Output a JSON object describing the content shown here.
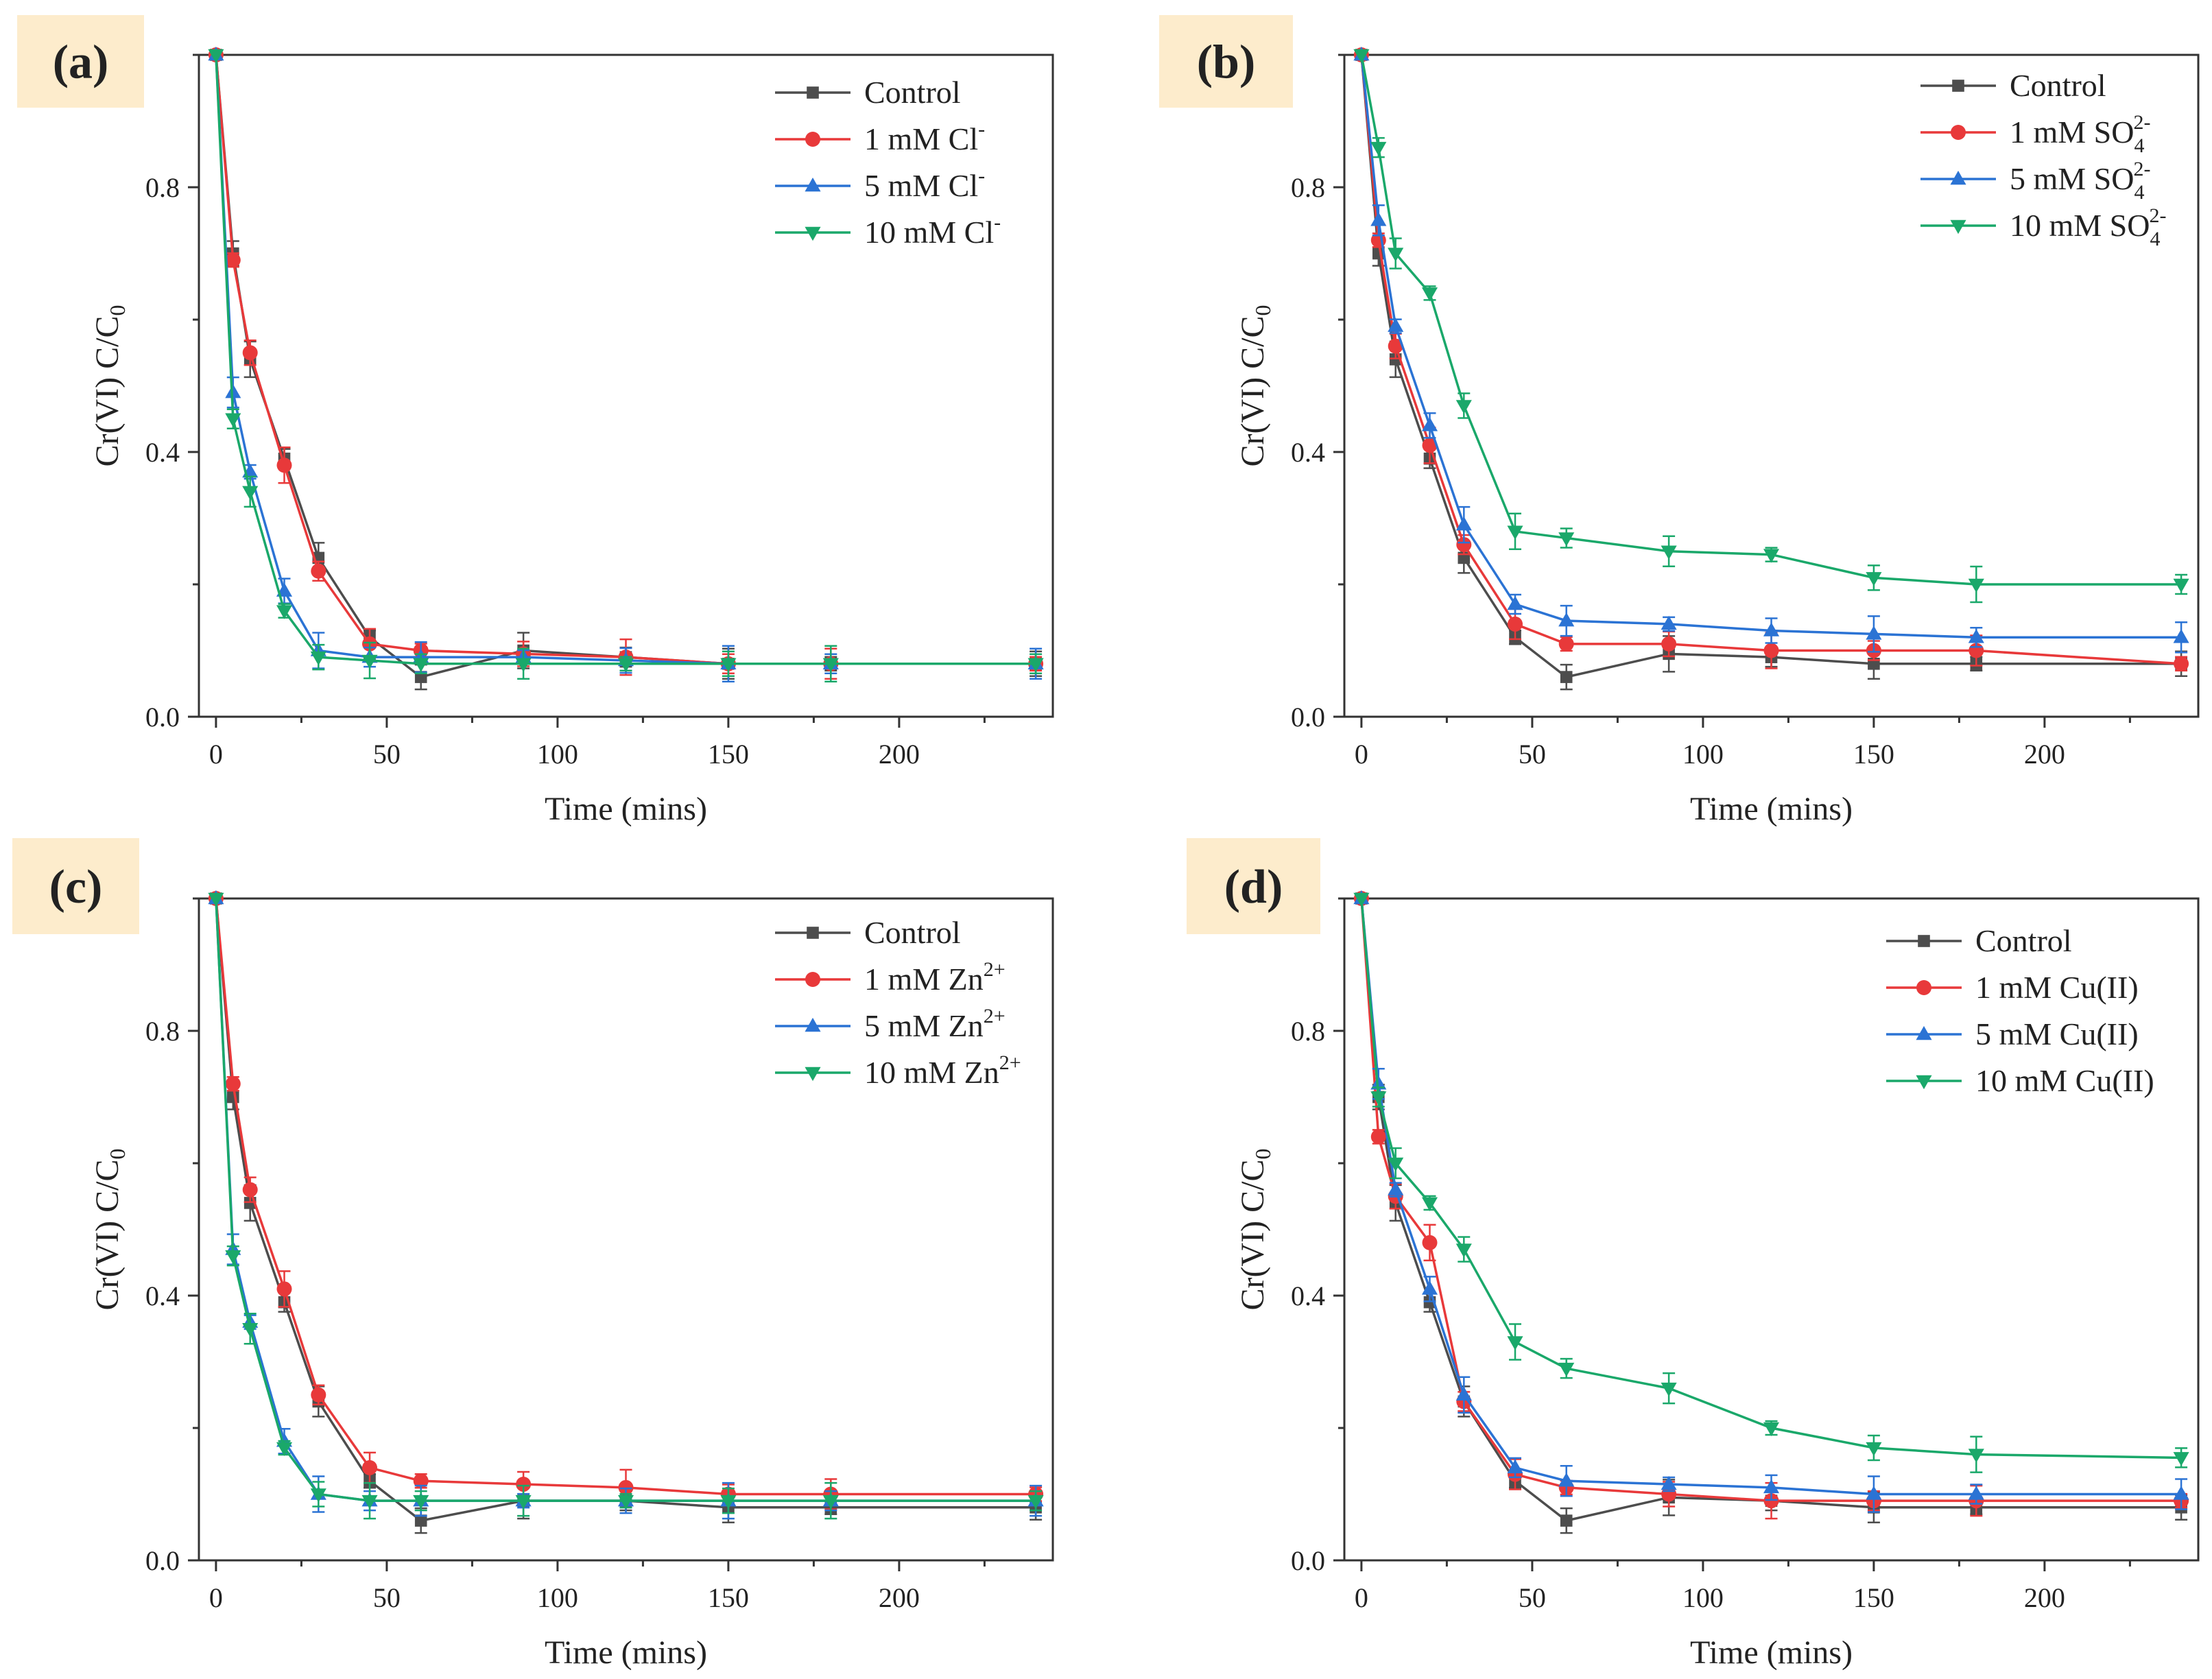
{
  "figure": {
    "panels": [
      "a",
      "b",
      "c",
      "d"
    ]
  },
  "chart_data": [
    {
      "type": "line",
      "panel_label": "(a)",
      "xlabel": "Time (mins)",
      "ylabel_main": "Cr(VI) C/C",
      "ylabel_sub": "0",
      "xlim": [
        -5,
        245
      ],
      "ylim": [
        0,
        1.0
      ],
      "xticks": [
        "0",
        "50",
        "100",
        "150",
        "200"
      ],
      "yticks": [
        "0.0",
        "0.4",
        "0.8"
      ],
      "legend_position": "top-right",
      "x": [
        0,
        5,
        10,
        20,
        30,
        45,
        60,
        90,
        120,
        150,
        180,
        240
      ],
      "series": [
        {
          "name": "Control",
          "ion_label": "Control",
          "ion_sup": "",
          "marker": "square",
          "color": "#4d4d4d",
          "values": [
            1.0,
            0.7,
            0.54,
            0.39,
            0.24,
            0.12,
            0.06,
            0.1,
            0.09,
            0.08,
            0.08,
            0.08
          ]
        },
        {
          "name": "1  mM Cl-",
          "ion_label": "1  mM Cl",
          "ion_sup": "-",
          "marker": "circle",
          "color": "#e8393a",
          "values": [
            1.0,
            0.69,
            0.55,
            0.38,
            0.22,
            0.11,
            0.1,
            0.095,
            0.09,
            0.08,
            0.08,
            0.08
          ]
        },
        {
          "name": "5  mM Cl-",
          "ion_label": "5  mM Cl",
          "ion_sup": "-",
          "marker": "triangle-up",
          "color": "#2b73d4",
          "values": [
            1.0,
            0.49,
            0.37,
            0.19,
            0.1,
            0.09,
            0.09,
            0.09,
            0.085,
            0.08,
            0.08,
            0.08
          ]
        },
        {
          "name": "10 mM Cl-",
          "ion_label": "10 mM Cl",
          "ion_sup": "-",
          "marker": "triangle-down",
          "color": "#1aa86a",
          "values": [
            1.0,
            0.45,
            0.34,
            0.16,
            0.09,
            0.085,
            0.08,
            0.08,
            0.08,
            0.08,
            0.08,
            0.08
          ]
        }
      ]
    },
    {
      "type": "line",
      "panel_label": "(b)",
      "xlabel": "Time (mins)",
      "ylabel_main": "Cr(VI) C/C",
      "ylabel_sub": "0",
      "xlim": [
        -5,
        245
      ],
      "ylim": [
        0,
        1.0
      ],
      "xticks": [
        "0",
        "50",
        "100",
        "150",
        "200"
      ],
      "yticks": [
        "0.0",
        "0.4",
        "0.8"
      ],
      "legend_position": "top-right",
      "x": [
        0,
        5,
        10,
        20,
        30,
        45,
        60,
        90,
        120,
        150,
        180,
        240
      ],
      "series": [
        {
          "name": "Control",
          "ion_label": "Control",
          "ion_sup": "",
          "ion_sub": "",
          "marker": "square",
          "color": "#4d4d4d",
          "values": [
            1.0,
            0.7,
            0.54,
            0.39,
            0.24,
            0.12,
            0.06,
            0.095,
            0.09,
            0.08,
            0.08,
            0.08
          ]
        },
        {
          "name": "1  mM SO4 2-",
          "ion_label": "1  mM SO",
          "ion_sup": "2-",
          "ion_sub": "4",
          "marker": "circle",
          "color": "#e8393a",
          "values": [
            1.0,
            0.72,
            0.56,
            0.41,
            0.26,
            0.14,
            0.11,
            0.11,
            0.1,
            0.1,
            0.1,
            0.08
          ]
        },
        {
          "name": "5  mM SO4 2-",
          "ion_label": "5  mM SO",
          "ion_sup": "2-",
          "ion_sub": "4",
          "marker": "triangle-up",
          "color": "#2b73d4",
          "values": [
            1.0,
            0.75,
            0.59,
            0.44,
            0.29,
            0.17,
            0.145,
            0.14,
            0.13,
            0.125,
            0.12,
            0.12
          ]
        },
        {
          "name": "10 mM SO4 2-",
          "ion_label": "10 mM SO",
          "ion_sup": "2-",
          "ion_sub": "4",
          "marker": "triangle-down",
          "color": "#1aa86a",
          "values": [
            1.0,
            0.86,
            0.7,
            0.64,
            0.47,
            0.28,
            0.27,
            0.25,
            0.245,
            0.21,
            0.2,
            0.2
          ]
        }
      ]
    },
    {
      "type": "line",
      "panel_label": "(c)",
      "xlabel": "Time (mins)",
      "ylabel_main": "Cr(VI) C/C",
      "ylabel_sub": "0",
      "xlim": [
        -5,
        245
      ],
      "ylim": [
        0,
        1.0
      ],
      "xticks": [
        "0",
        "50",
        "100",
        "150",
        "200"
      ],
      "yticks": [
        "0.0",
        "0.4",
        "0.8"
      ],
      "legend_position": "top-right",
      "x": [
        0,
        5,
        10,
        20,
        30,
        45,
        60,
        90,
        120,
        150,
        180,
        240
      ],
      "series": [
        {
          "name": "Control",
          "ion_label": "Control",
          "ion_sup": "",
          "marker": "square",
          "color": "#4d4d4d",
          "values": [
            1.0,
            0.7,
            0.54,
            0.39,
            0.24,
            0.12,
            0.06,
            0.09,
            0.09,
            0.08,
            0.08,
            0.08
          ]
        },
        {
          "name": "1  mM Zn2+",
          "ion_label": "1  mM Zn",
          "ion_sup": "2+",
          "marker": "circle",
          "color": "#e8393a",
          "values": [
            1.0,
            0.72,
            0.56,
            0.41,
            0.25,
            0.14,
            0.12,
            0.115,
            0.11,
            0.1,
            0.1,
            0.1
          ]
        },
        {
          "name": "5  mM  Zn2+",
          "ion_label": "5  mM  Zn",
          "ion_sup": "2+",
          "marker": "triangle-up",
          "color": "#2b73d4",
          "values": [
            1.0,
            0.47,
            0.36,
            0.18,
            0.1,
            0.09,
            0.09,
            0.09,
            0.09,
            0.09,
            0.09,
            0.09
          ]
        },
        {
          "name": "10 mM Zn2+",
          "ion_label": "10 mM Zn",
          "ion_sup": "2+",
          "marker": "triangle-down",
          "color": "#1aa86a",
          "values": [
            1.0,
            0.46,
            0.35,
            0.17,
            0.1,
            0.09,
            0.09,
            0.09,
            0.09,
            0.09,
            0.09,
            0.09
          ]
        }
      ]
    },
    {
      "type": "line",
      "panel_label": "(d)",
      "xlabel": "Time (mins)",
      "ylabel_main": "Cr(VI) C/C",
      "ylabel_sub": "0",
      "xlim": [
        -5,
        245
      ],
      "ylim": [
        0,
        1.0
      ],
      "xticks": [
        "0",
        "50",
        "100",
        "150",
        "200"
      ],
      "yticks": [
        "0.0",
        "0.4",
        "0.8"
      ],
      "legend_position": "top-right",
      "x": [
        0,
        5,
        10,
        20,
        30,
        45,
        60,
        90,
        120,
        150,
        180,
        240
      ],
      "series": [
        {
          "name": "Control",
          "ion_label": "Control",
          "ion_sup": "",
          "marker": "square",
          "color": "#4d4d4d",
          "values": [
            1.0,
            0.7,
            0.54,
            0.39,
            0.24,
            0.12,
            0.06,
            0.095,
            0.09,
            0.08,
            0.08,
            0.08
          ]
        },
        {
          "name": "1  mM Cu(II)",
          "ion_label": "1  mM Cu(II)",
          "ion_sup": "",
          "marker": "circle",
          "color": "#e8393a",
          "values": [
            1.0,
            0.64,
            0.55,
            0.48,
            0.24,
            0.13,
            0.11,
            0.1,
            0.09,
            0.09,
            0.09,
            0.09
          ]
        },
        {
          "name": "5  mM Cu(II)",
          "ion_label": "5  mM Cu(II)",
          "ion_sup": "",
          "marker": "triangle-up",
          "color": "#2b73d4",
          "values": [
            1.0,
            0.72,
            0.56,
            0.41,
            0.25,
            0.14,
            0.12,
            0.115,
            0.11,
            0.1,
            0.1,
            0.1
          ]
        },
        {
          "name": "10 mM Cu(II)",
          "ion_label": "10 mM Cu(II)",
          "ion_sup": "",
          "marker": "triangle-down",
          "color": "#1aa86a",
          "values": [
            1.0,
            0.7,
            0.6,
            0.54,
            0.47,
            0.33,
            0.29,
            0.26,
            0.2,
            0.17,
            0.16,
            0.155
          ]
        }
      ]
    }
  ]
}
